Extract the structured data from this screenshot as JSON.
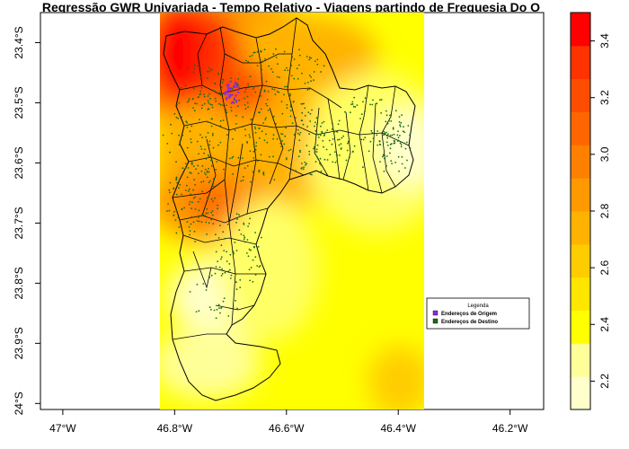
{
  "title": "Regressão GWR Univariada - Tempo Relativo - Viagens partindo de Freguesia Do O",
  "axes": {
    "x_ticks": [
      "47°W",
      "46.8°W",
      "46.6°W",
      "46.4°W",
      "46.2°W"
    ],
    "x_values": [
      -47.0,
      -46.8,
      -46.6,
      -46.4,
      -46.2
    ],
    "y_ticks": [
      "23.4°S",
      "23.5°S",
      "23.6°S",
      "23.7°S",
      "23.8°S",
      "23.9°S",
      "24°S"
    ],
    "y_values": [
      -23.4,
      -23.5,
      -23.6,
      -23.7,
      -23.8,
      -23.9,
      -24.0
    ],
    "xlim": [
      -47.04,
      -46.14
    ],
    "ylim": [
      -24.01,
      -23.35
    ]
  },
  "legend": {
    "title": "Legenda",
    "placement": "bottom-right",
    "items": [
      {
        "label": "Endereços de Origem",
        "color": "#8a2be2"
      },
      {
        "label": "Endereços de Destino",
        "color": "#1a6b1a"
      }
    ]
  },
  "colorbar": {
    "ticks": [
      "2.2",
      "2.4",
      "2.6",
      "2.8",
      "3.0",
      "3.2",
      "3.4"
    ],
    "tick_values": [
      2.2,
      2.4,
      2.6,
      2.8,
      3.0,
      3.2,
      3.4
    ],
    "range": [
      2.1,
      3.5
    ],
    "colors": [
      "#ffffcc",
      "#ffff99",
      "#ffff00",
      "#ffe600",
      "#ffcc00",
      "#ffb300",
      "#ff9900",
      "#ff8000",
      "#ff6600",
      "#ff4d00",
      "#ff3300",
      "#ff0000"
    ]
  },
  "colors": {
    "origin_points": "#8a2be2",
    "destination_points": "#1a6b1a",
    "boundary": "#000000"
  }
}
